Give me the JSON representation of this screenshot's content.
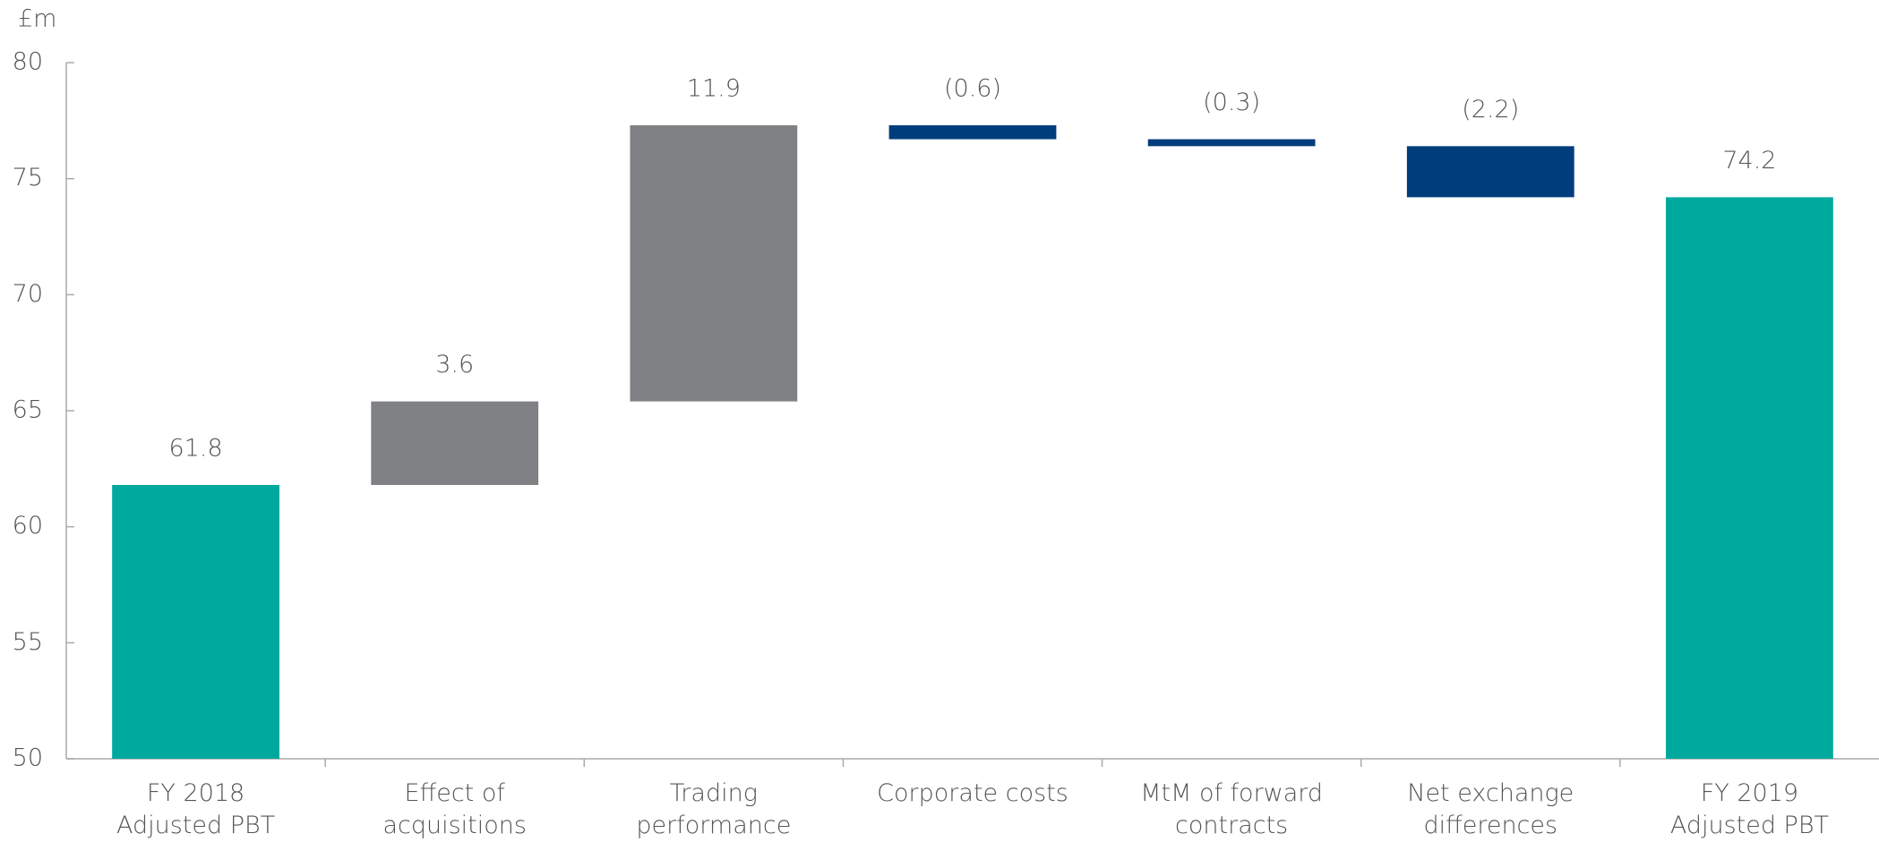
{
  "chart_data": {
    "type": "waterfall",
    "y_label": "£m",
    "categories": [
      [
        "FY 2018",
        "Adjusted PBT"
      ],
      [
        "Effect of",
        "acquisitions"
      ],
      [
        "Trading",
        "performance"
      ],
      [
        "Corporate costs"
      ],
      [
        "MtM of forward",
        "contracts"
      ],
      [
        "Net exchange",
        "differences"
      ],
      [
        "FY 2019",
        "Adjusted PBT"
      ]
    ],
    "values": [
      61.8,
      3.6,
      11.9,
      -0.6,
      -0.3,
      -2.2,
      74.2
    ],
    "value_labels": [
      "61.8",
      "3.6",
      "11.9",
      "(0.6)",
      "(0.3)",
      "(2.2)",
      "74.2"
    ],
    "measure": [
      "absolute",
      "relative",
      "relative",
      "relative",
      "relative",
      "relative",
      "total"
    ],
    "colors": {
      "total": "#00a99d",
      "increase": "#808184",
      "decrease": "#003d7c"
    },
    "ylim": [
      50,
      80
    ],
    "yticks": [
      50,
      55,
      60,
      65,
      70,
      75,
      80
    ],
    "grid": false
  }
}
